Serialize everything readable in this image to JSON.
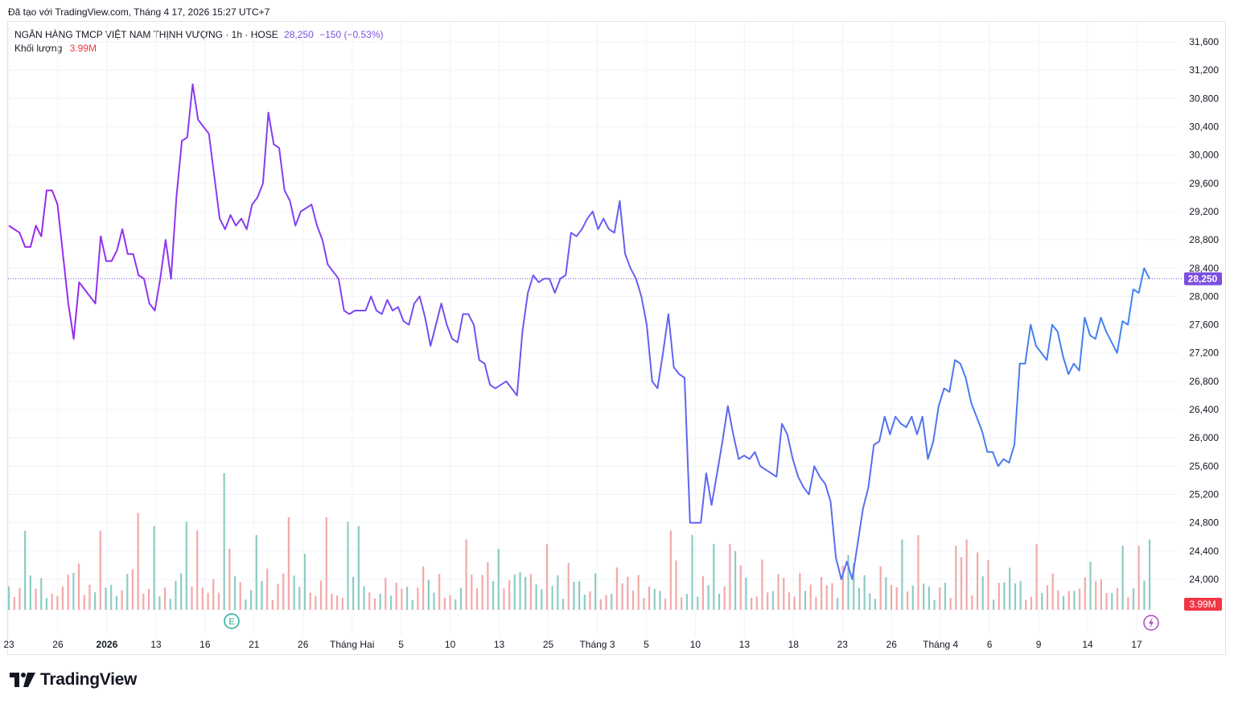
{
  "caption": "Đã tạo với TradingView.com, Tháng 4 17, 2026 15:27 UTC+7",
  "legend": {
    "symbol": "NGÂN HÀNG TMCP VIỆT NAM THỊNH VƯỢNG · 1h · HOSE",
    "price": "28,250",
    "change": "−150 (−0.53%)",
    "volume_label": "Khối lượng",
    "volume_value": "3.99M"
  },
  "brand": "TradingView",
  "event_marker": "E",
  "colors": {
    "line_start": "#9c27f0",
    "line_mid": "#6a5cf0",
    "line_end": "#3d86f2",
    "price_label": "#7b4fe0",
    "volume_up": "#80c7be",
    "volume_down": "#f29e9e",
    "volume_label": "#f23645",
    "grid": "#f0f3fa"
  },
  "chart_data": {
    "type": "line",
    "y_ticks": [
      "31,600",
      "31,200",
      "30,800",
      "30,400",
      "30,000",
      "29,600",
      "29,200",
      "28,800",
      "28,400",
      "28,000",
      "27,600",
      "27,200",
      "26,800",
      "26,400",
      "26,000",
      "25,600",
      "25,200",
      "24,800",
      "24,400",
      "24,000"
    ],
    "ylim": [
      23600,
      31800
    ],
    "last_price": 28250,
    "last_price_label": "28,250",
    "last_volume_label": "3.99M",
    "x_ticks": [
      {
        "label": "23",
        "bar": 0
      },
      {
        "label": "26",
        "bar": 10
      },
      {
        "label": "2026",
        "bar": 20
      },
      {
        "label": "13",
        "bar": 30
      },
      {
        "label": "16",
        "bar": 40
      },
      {
        "label": "21",
        "bar": 50
      },
      {
        "label": "26",
        "bar": 60
      },
      {
        "label": "Tháng Hai",
        "bar": 70
      },
      {
        "label": "5",
        "bar": 80
      },
      {
        "label": "10",
        "bar": 90
      },
      {
        "label": "13",
        "bar": 100
      },
      {
        "label": "25",
        "bar": 110
      },
      {
        "label": "Tháng 3",
        "bar": 120
      },
      {
        "label": "5",
        "bar": 130
      },
      {
        "label": "10",
        "bar": 140
      },
      {
        "label": "13",
        "bar": 150
      },
      {
        "label": "18",
        "bar": 160
      },
      {
        "label": "23",
        "bar": 170
      },
      {
        "label": "26",
        "bar": 180
      },
      {
        "label": "Tháng 4",
        "bar": 190
      },
      {
        "label": "6",
        "bar": 200
      },
      {
        "label": "9",
        "bar": 210
      },
      {
        "label": "14",
        "bar": 220
      },
      {
        "label": "17",
        "bar": 230
      }
    ],
    "bar_count": 233,
    "series": [
      {
        "anchors": [
          [
            0,
            29000
          ],
          [
            2,
            28900
          ],
          [
            3,
            28700
          ],
          [
            4,
            28700
          ],
          [
            5,
            29000
          ],
          [
            6,
            28850
          ],
          [
            7,
            29500
          ],
          [
            8,
            29500
          ],
          [
            9,
            29300
          ],
          [
            10,
            28600
          ],
          [
            11,
            27900
          ],
          [
            12,
            27400
          ],
          [
            13,
            28200
          ],
          [
            14,
            28100
          ],
          [
            15,
            28000
          ],
          [
            16,
            27900
          ],
          [
            17,
            28850
          ],
          [
            18,
            28500
          ],
          [
            19,
            28500
          ],
          [
            20,
            28650
          ],
          [
            21,
            28950
          ],
          [
            22,
            28600
          ],
          [
            23,
            28600
          ],
          [
            24,
            28300
          ],
          [
            25,
            28250
          ],
          [
            26,
            27900
          ],
          [
            27,
            27800
          ],
          [
            28,
            28250
          ],
          [
            29,
            28800
          ],
          [
            30,
            28250
          ],
          [
            31,
            29400
          ],
          [
            32,
            30200
          ],
          [
            33,
            30250
          ],
          [
            34,
            31000
          ],
          [
            35,
            30500
          ],
          [
            36,
            30400
          ],
          [
            37,
            30300
          ],
          [
            38,
            29700
          ],
          [
            39,
            29100
          ],
          [
            40,
            28950
          ],
          [
            41,
            29150
          ],
          [
            42,
            29000
          ],
          [
            43,
            29100
          ],
          [
            44,
            28950
          ],
          [
            45,
            29300
          ],
          [
            46,
            29400
          ],
          [
            47,
            29600
          ],
          [
            48,
            30600
          ],
          [
            49,
            30150
          ],
          [
            50,
            30100
          ],
          [
            51,
            29500
          ],
          [
            52,
            29350
          ],
          [
            53,
            29000
          ],
          [
            54,
            29200
          ],
          [
            55,
            29250
          ],
          [
            56,
            29300
          ],
          [
            57,
            29000
          ],
          [
            58,
            28800
          ],
          [
            59,
            28450
          ],
          [
            60,
            28350
          ],
          [
            61,
            28250
          ],
          [
            62,
            27800
          ],
          [
            63,
            27750
          ],
          [
            64,
            27800
          ],
          [
            65,
            27800
          ],
          [
            66,
            27800
          ],
          [
            67,
            28000
          ],
          [
            68,
            27800
          ],
          [
            69,
            27750
          ],
          [
            70,
            27950
          ],
          [
            71,
            27800
          ],
          [
            72,
            27850
          ],
          [
            73,
            27650
          ],
          [
            74,
            27600
          ],
          [
            75,
            27900
          ],
          [
            76,
            28000
          ],
          [
            77,
            27700
          ],
          [
            78,
            27300
          ],
          [
            79,
            27600
          ],
          [
            80,
            27900
          ],
          [
            81,
            27600
          ],
          [
            82,
            27400
          ],
          [
            83,
            27350
          ],
          [
            84,
            27750
          ],
          [
            85,
            27750
          ],
          [
            86,
            27600
          ],
          [
            87,
            27100
          ],
          [
            88,
            27050
          ],
          [
            89,
            26750
          ],
          [
            90,
            26700
          ],
          [
            91,
            26750
          ],
          [
            92,
            26800
          ],
          [
            93,
            26700
          ],
          [
            94,
            26600
          ],
          [
            95,
            27500
          ],
          [
            96,
            28050
          ],
          [
            97,
            28300
          ],
          [
            98,
            28200
          ],
          [
            99,
            28250
          ],
          [
            100,
            28250
          ],
          [
            101,
            28050
          ],
          [
            102,
            28250
          ],
          [
            103,
            28300
          ],
          [
            104,
            28900
          ],
          [
            105,
            28850
          ],
          [
            106,
            28950
          ],
          [
            107,
            29100
          ],
          [
            108,
            29200
          ],
          [
            109,
            28950
          ],
          [
            110,
            29100
          ],
          [
            111,
            28950
          ],
          [
            112,
            28900
          ],
          [
            113,
            29350
          ],
          [
            114,
            28600
          ],
          [
            115,
            28400
          ],
          [
            116,
            28250
          ],
          [
            117,
            28000
          ],
          [
            118,
            27600
          ],
          [
            119,
            26800
          ],
          [
            120,
            26700
          ],
          [
            121,
            27200
          ],
          [
            122,
            27750
          ],
          [
            123,
            27000
          ],
          [
            124,
            26900
          ],
          [
            125,
            26850
          ],
          [
            126,
            24800
          ],
          [
            127,
            24800
          ],
          [
            128,
            24800
          ],
          [
            129,
            25500
          ],
          [
            130,
            25050
          ],
          [
            131,
            25500
          ],
          [
            132,
            25950
          ],
          [
            133,
            26450
          ],
          [
            134,
            26050
          ],
          [
            135,
            25700
          ],
          [
            136,
            25750
          ],
          [
            137,
            25700
          ],
          [
            138,
            25800
          ],
          [
            139,
            25600
          ],
          [
            140,
            25550
          ],
          [
            141,
            25500
          ],
          [
            142,
            25450
          ],
          [
            143,
            26200
          ],
          [
            144,
            26050
          ],
          [
            145,
            25700
          ],
          [
            146,
            25450
          ],
          [
            147,
            25300
          ],
          [
            148,
            25200
          ],
          [
            149,
            25600
          ],
          [
            150,
            25450
          ],
          [
            151,
            25350
          ],
          [
            152,
            25100
          ],
          [
            153,
            24300
          ],
          [
            154,
            24000
          ],
          [
            155,
            24250
          ],
          [
            156,
            24000
          ],
          [
            157,
            24500
          ],
          [
            158,
            25000
          ],
          [
            159,
            25300
          ],
          [
            160,
            25900
          ],
          [
            161,
            25950
          ],
          [
            162,
            26300
          ],
          [
            163,
            26050
          ],
          [
            164,
            26300
          ],
          [
            165,
            26200
          ],
          [
            166,
            26150
          ],
          [
            167,
            26300
          ],
          [
            168,
            26050
          ],
          [
            169,
            26300
          ],
          [
            170,
            25700
          ],
          [
            171,
            25950
          ],
          [
            172,
            26450
          ],
          [
            173,
            26700
          ],
          [
            174,
            26650
          ],
          [
            175,
            27100
          ],
          [
            176,
            27050
          ],
          [
            177,
            26850
          ],
          [
            178,
            26500
          ],
          [
            179,
            26300
          ],
          [
            180,
            26100
          ],
          [
            181,
            25800
          ],
          [
            182,
            25800
          ],
          [
            183,
            25600
          ],
          [
            184,
            25700
          ],
          [
            185,
            25650
          ],
          [
            186,
            25900
          ],
          [
            187,
            27050
          ],
          [
            188,
            27050
          ],
          [
            189,
            27600
          ],
          [
            190,
            27300
          ],
          [
            191,
            27200
          ],
          [
            192,
            27100
          ],
          [
            193,
            27600
          ],
          [
            194,
            27500
          ],
          [
            195,
            27150
          ],
          [
            196,
            26900
          ],
          [
            197,
            27050
          ],
          [
            198,
            26950
          ],
          [
            199,
            27700
          ],
          [
            200,
            27450
          ],
          [
            201,
            27400
          ],
          [
            202,
            27700
          ],
          [
            203,
            27500
          ],
          [
            204,
            27350
          ],
          [
            205,
            27200
          ],
          [
            206,
            27650
          ],
          [
            207,
            27600
          ],
          [
            208,
            28100
          ],
          [
            209,
            28050
          ],
          [
            210,
            28400
          ],
          [
            211,
            28250
          ]
        ]
      }
    ]
  }
}
